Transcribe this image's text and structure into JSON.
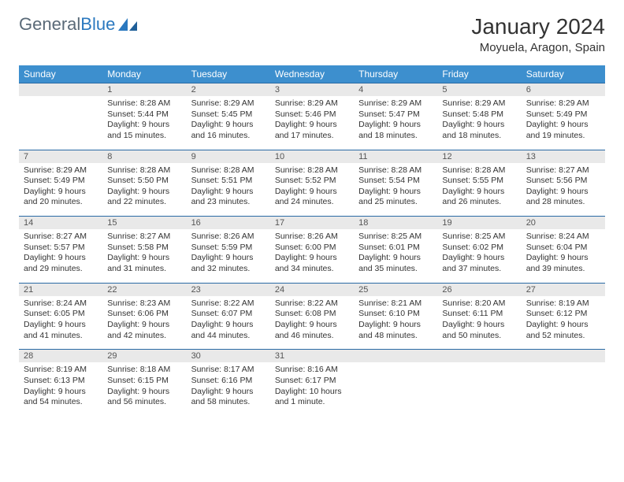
{
  "logo": {
    "text1": "General",
    "text2": "Blue"
  },
  "title": "January 2024",
  "location": "Moyuela, Aragon, Spain",
  "colors": {
    "header_bg": "#3d8fce",
    "header_text": "#ffffff",
    "daynum_bg": "#e9e9e9",
    "daynum_border": "#2a6aa5",
    "body_text": "#333333",
    "logo_gray": "#5a6a78",
    "logo_blue": "#2a78bf",
    "background": "#ffffff"
  },
  "weekdays": [
    "Sunday",
    "Monday",
    "Tuesday",
    "Wednesday",
    "Thursday",
    "Friday",
    "Saturday"
  ],
  "weeks": [
    [
      null,
      {
        "n": "1",
        "sunrise": "8:28 AM",
        "sunset": "5:44 PM",
        "daylight": "9 hours and 15 minutes."
      },
      {
        "n": "2",
        "sunrise": "8:29 AM",
        "sunset": "5:45 PM",
        "daylight": "9 hours and 16 minutes."
      },
      {
        "n": "3",
        "sunrise": "8:29 AM",
        "sunset": "5:46 PM",
        "daylight": "9 hours and 17 minutes."
      },
      {
        "n": "4",
        "sunrise": "8:29 AM",
        "sunset": "5:47 PM",
        "daylight": "9 hours and 18 minutes."
      },
      {
        "n": "5",
        "sunrise": "8:29 AM",
        "sunset": "5:48 PM",
        "daylight": "9 hours and 18 minutes."
      },
      {
        "n": "6",
        "sunrise": "8:29 AM",
        "sunset": "5:49 PM",
        "daylight": "9 hours and 19 minutes."
      }
    ],
    [
      {
        "n": "7",
        "sunrise": "8:29 AM",
        "sunset": "5:49 PM",
        "daylight": "9 hours and 20 minutes."
      },
      {
        "n": "8",
        "sunrise": "8:28 AM",
        "sunset": "5:50 PM",
        "daylight": "9 hours and 22 minutes."
      },
      {
        "n": "9",
        "sunrise": "8:28 AM",
        "sunset": "5:51 PM",
        "daylight": "9 hours and 23 minutes."
      },
      {
        "n": "10",
        "sunrise": "8:28 AM",
        "sunset": "5:52 PM",
        "daylight": "9 hours and 24 minutes."
      },
      {
        "n": "11",
        "sunrise": "8:28 AM",
        "sunset": "5:54 PM",
        "daylight": "9 hours and 25 minutes."
      },
      {
        "n": "12",
        "sunrise": "8:28 AM",
        "sunset": "5:55 PM",
        "daylight": "9 hours and 26 minutes."
      },
      {
        "n": "13",
        "sunrise": "8:27 AM",
        "sunset": "5:56 PM",
        "daylight": "9 hours and 28 minutes."
      }
    ],
    [
      {
        "n": "14",
        "sunrise": "8:27 AM",
        "sunset": "5:57 PM",
        "daylight": "9 hours and 29 minutes."
      },
      {
        "n": "15",
        "sunrise": "8:27 AM",
        "sunset": "5:58 PM",
        "daylight": "9 hours and 31 minutes."
      },
      {
        "n": "16",
        "sunrise": "8:26 AM",
        "sunset": "5:59 PM",
        "daylight": "9 hours and 32 minutes."
      },
      {
        "n": "17",
        "sunrise": "8:26 AM",
        "sunset": "6:00 PM",
        "daylight": "9 hours and 34 minutes."
      },
      {
        "n": "18",
        "sunrise": "8:25 AM",
        "sunset": "6:01 PM",
        "daylight": "9 hours and 35 minutes."
      },
      {
        "n": "19",
        "sunrise": "8:25 AM",
        "sunset": "6:02 PM",
        "daylight": "9 hours and 37 minutes."
      },
      {
        "n": "20",
        "sunrise": "8:24 AM",
        "sunset": "6:04 PM",
        "daylight": "9 hours and 39 minutes."
      }
    ],
    [
      {
        "n": "21",
        "sunrise": "8:24 AM",
        "sunset": "6:05 PM",
        "daylight": "9 hours and 41 minutes."
      },
      {
        "n": "22",
        "sunrise": "8:23 AM",
        "sunset": "6:06 PM",
        "daylight": "9 hours and 42 minutes."
      },
      {
        "n": "23",
        "sunrise": "8:22 AM",
        "sunset": "6:07 PM",
        "daylight": "9 hours and 44 minutes."
      },
      {
        "n": "24",
        "sunrise": "8:22 AM",
        "sunset": "6:08 PM",
        "daylight": "9 hours and 46 minutes."
      },
      {
        "n": "25",
        "sunrise": "8:21 AM",
        "sunset": "6:10 PM",
        "daylight": "9 hours and 48 minutes."
      },
      {
        "n": "26",
        "sunrise": "8:20 AM",
        "sunset": "6:11 PM",
        "daylight": "9 hours and 50 minutes."
      },
      {
        "n": "27",
        "sunrise": "8:19 AM",
        "sunset": "6:12 PM",
        "daylight": "9 hours and 52 minutes."
      }
    ],
    [
      {
        "n": "28",
        "sunrise": "8:19 AM",
        "sunset": "6:13 PM",
        "daylight": "9 hours and 54 minutes."
      },
      {
        "n": "29",
        "sunrise": "8:18 AM",
        "sunset": "6:15 PM",
        "daylight": "9 hours and 56 minutes."
      },
      {
        "n": "30",
        "sunrise": "8:17 AM",
        "sunset": "6:16 PM",
        "daylight": "9 hours and 58 minutes."
      },
      {
        "n": "31",
        "sunrise": "8:16 AM",
        "sunset": "6:17 PM",
        "daylight": "10 hours and 1 minute."
      },
      null,
      null,
      null
    ]
  ],
  "labels": {
    "sunrise": "Sunrise:",
    "sunset": "Sunset:",
    "daylight": "Daylight:"
  }
}
